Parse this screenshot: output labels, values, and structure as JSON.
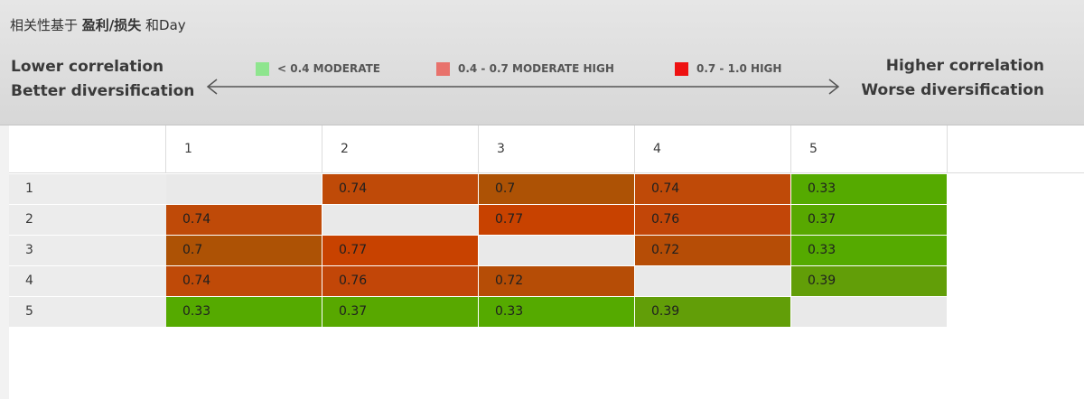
{
  "title": {
    "prefix": "相关性基于 ",
    "bold": "盈利/损失",
    "suffix": " 和Day"
  },
  "scale": {
    "left_line1": "Lower correlation",
    "left_line2": "Better diversification",
    "right_line1": "Higher correlation",
    "right_line2": "Worse diversification"
  },
  "legend": [
    {
      "label": "< 0.4 MODERATE",
      "color": "#8ee58e"
    },
    {
      "label": "0.4 - 0.7 MODERATE HIGH",
      "color": "#e8726c"
    },
    {
      "label": "0.7 - 1.0 HIGH",
      "color": "#ee1111"
    }
  ],
  "matrix": {
    "columns": [
      "1",
      "2",
      "3",
      "4",
      "5"
    ],
    "rows": [
      "1",
      "2",
      "3",
      "4",
      "5"
    ],
    "values": [
      [
        null,
        "0.74",
        "0.7",
        "0.74",
        "0.33"
      ],
      [
        "0.74",
        null,
        "0.77",
        "0.76",
        "0.37"
      ],
      [
        "0.7",
        "0.77",
        null,
        "0.72",
        "0.33"
      ],
      [
        "0.74",
        "0.76",
        "0.72",
        null,
        "0.39"
      ],
      [
        "0.33",
        "0.37",
        "0.33",
        "0.39",
        null
      ]
    ],
    "colors": [
      [
        null,
        "#bf4a08",
        "#ad5205",
        "#bf4a08",
        "#55aa00"
      ],
      [
        "#bf4a08",
        null,
        "#c84200",
        "#c24608",
        "#58a800"
      ],
      [
        "#ad5205",
        "#c84200",
        null,
        "#b64d06",
        "#55aa00"
      ],
      [
        "#bf4a08",
        "#c24608",
        "#b64d06",
        null,
        "#629e08"
      ],
      [
        "#55aa00",
        "#58a800",
        "#55aa00",
        "#629e08",
        null
      ]
    ]
  }
}
